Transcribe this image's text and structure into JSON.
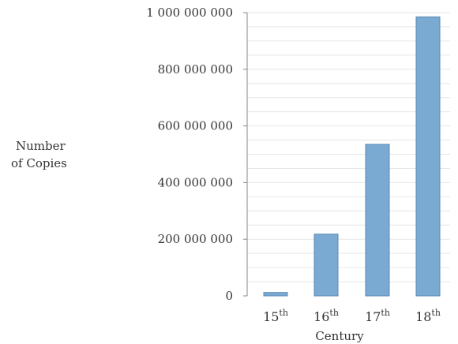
{
  "chart_data": {
    "type": "bar",
    "title": "",
    "xlabel": "Century",
    "ylabel_lines": [
      "Number",
      "of Copies"
    ],
    "categories": [
      {
        "num": "15",
        "suffix": "th"
      },
      {
        "num": "16",
        "suffix": "th"
      },
      {
        "num": "17",
        "suffix": "th"
      },
      {
        "num": "18",
        "suffix": "th"
      }
    ],
    "values": [
      12000000,
      218000000,
      535000000,
      985000000
    ],
    "ylim": [
      0,
      1000000000
    ],
    "yticks": [
      0,
      200000000,
      400000000,
      600000000,
      800000000,
      1000000000
    ],
    "ytick_labels": [
      "0",
      "200 000 000",
      "400 000 000",
      "600 000 000",
      "800 000 000",
      "1 000 000 000"
    ],
    "grid": true,
    "bar_color": "#7aaad2",
    "bar_edge_color": "#5a8ab6"
  }
}
